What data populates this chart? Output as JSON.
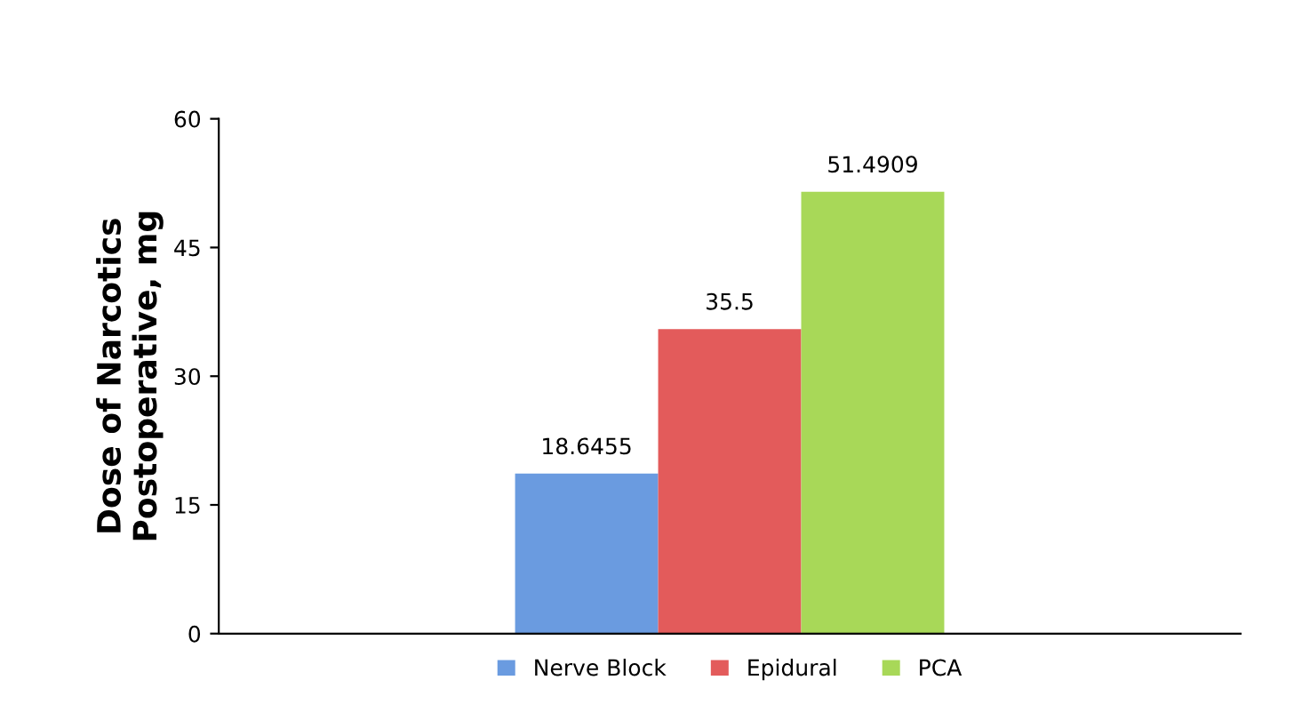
{
  "chart_data": {
    "type": "bar",
    "ylabel": "Dose of Narcotics\nPostoperative, mg",
    "categories": [
      null
    ],
    "series": [
      {
        "name": "Nerve Block",
        "color": "#6a9be0",
        "values": [
          18.6455
        ]
      },
      {
        "name": "Epidural",
        "color": "#e35b5b",
        "values": [
          35.5
        ]
      },
      {
        "name": "PCA",
        "color": "#a8d858",
        "values": [
          51.4909
        ]
      }
    ],
    "ylim": [
      0,
      60
    ],
    "yticks": [
      0,
      15,
      30,
      45,
      60
    ],
    "data_labels": true,
    "grid": false,
    "legend": "bottom"
  }
}
